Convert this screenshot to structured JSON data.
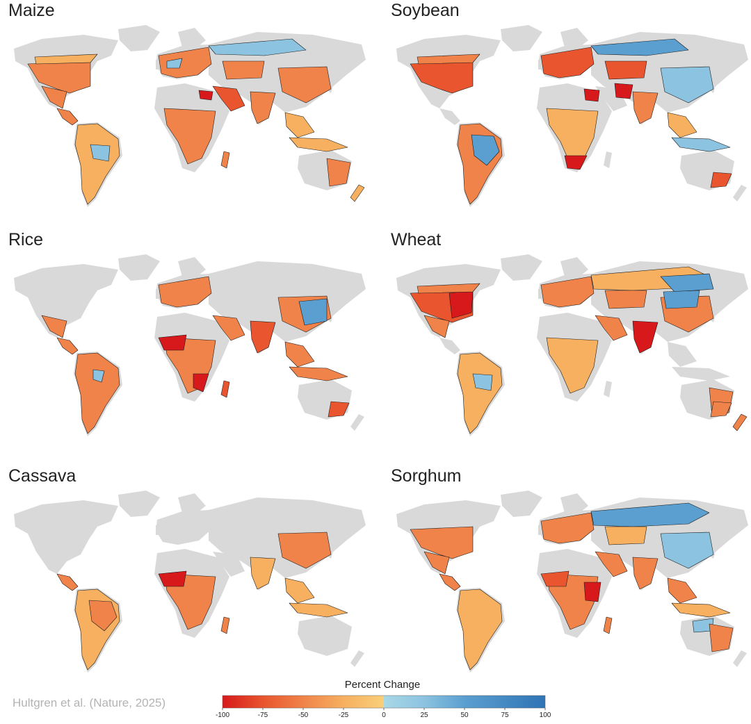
{
  "colors": {
    "land": "#d9d9d9",
    "ocean": "#ffffff",
    "outline": "#1a1a1a",
    "scale": [
      "#d7191c",
      "#e8552e",
      "#f0834a",
      "#f6b060",
      "#f9cf7a",
      "#a9d8e6",
      "#8cc3e0",
      "#5b9fd0",
      "#2f74b5"
    ]
  },
  "panels": [
    {
      "title": "Maize",
      "dominant": "orange",
      "blue_regions": [
        "russia-north",
        "central-south-america",
        "europe-patches"
      ],
      "red_regions": [
        "north-africa-east"
      ]
    },
    {
      "title": "Soybean",
      "dominant": "orange",
      "blue_regions": [
        "russia-north",
        "brazil",
        "china"
      ],
      "red_regions": [
        "iran",
        "south-africa",
        "egypt"
      ]
    },
    {
      "title": "Rice",
      "dominant": "orange",
      "blue_regions": [
        "china-east",
        "south-america-patches"
      ],
      "red_regions": [
        "west-africa",
        "southeast-africa"
      ]
    },
    {
      "title": "Wheat",
      "dominant": "orange",
      "blue_regions": [
        "russia-east",
        "china-north",
        "central-asia"
      ],
      "red_regions": [
        "south-asia",
        "usa-east"
      ]
    },
    {
      "title": "Cassava",
      "dominant": "orange",
      "blue_regions": [],
      "red_regions": [
        "west-africa"
      ]
    },
    {
      "title": "Sorghum",
      "dominant": "orange",
      "blue_regions": [
        "russia",
        "china",
        "australia-north"
      ],
      "red_regions": [
        "east-africa"
      ]
    }
  ],
  "credit": "Hultgren et al. (Nature, 2025)",
  "legend": {
    "title": "Percent Change",
    "ticks": [
      "-100",
      "-75",
      "-50",
      "-25",
      "0",
      "25",
      "50",
      "75",
      "100"
    ],
    "min": -100,
    "max": 100
  }
}
